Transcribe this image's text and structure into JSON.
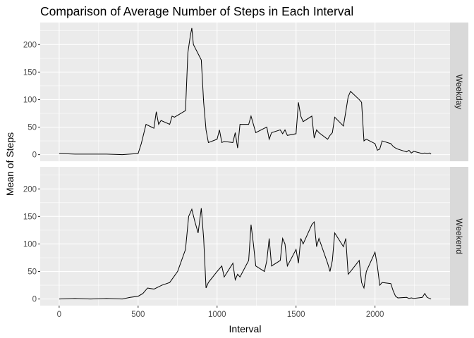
{
  "chart_data": {
    "type": "line",
    "title": "Comparison of Average Number of Steps in Each Interval",
    "xlabel": "Interval",
    "ylabel": "Mean of Steps",
    "xlim": [
      -120,
      2475
    ],
    "ylim": [
      -12,
      240
    ],
    "x_ticks": [
      0,
      500,
      1000,
      1500,
      2000
    ],
    "y_ticks": [
      0,
      50,
      100,
      150,
      200
    ],
    "grid": true,
    "line_color": "#000000",
    "panel_background": "#ebebeb",
    "strip_background": "#d9d9d9",
    "panels": [
      {
        "name": "Weekday",
        "x": [
          0,
          100,
          200,
          300,
          400,
          500,
          520,
          550,
          600,
          615,
          630,
          645,
          700,
          715,
          730,
          800,
          815,
          830,
          840,
          850,
          900,
          915,
          930,
          945,
          1000,
          1015,
          1030,
          1045,
          1100,
          1115,
          1130,
          1145,
          1200,
          1215,
          1230,
          1245,
          1300,
          1315,
          1330,
          1345,
          1400,
          1415,
          1430,
          1445,
          1500,
          1515,
          1530,
          1545,
          1600,
          1615,
          1630,
          1645,
          1700,
          1715,
          1730,
          1745,
          1800,
          1815,
          1830,
          1845,
          1900,
          1915,
          1930,
          1945,
          2000,
          2015,
          2030,
          2045,
          2100,
          2115,
          2130,
          2145,
          2200,
          2215,
          2230,
          2245,
          2300,
          2315,
          2330,
          2345,
          2355
        ],
        "y": [
          2,
          1,
          1,
          1,
          0,
          2,
          20,
          55,
          48,
          78,
          55,
          62,
          55,
          70,
          68,
          80,
          185,
          215,
          230,
          200,
          172,
          95,
          45,
          22,
          28,
          45,
          22,
          24,
          22,
          40,
          12,
          55,
          55,
          70,
          55,
          40,
          48,
          50,
          28,
          40,
          45,
          38,
          45,
          35,
          38,
          95,
          70,
          60,
          70,
          30,
          45,
          40,
          28,
          35,
          40,
          68,
          52,
          78,
          105,
          115,
          100,
          95,
          25,
          28,
          20,
          8,
          10,
          25,
          20,
          15,
          12,
          10,
          5,
          8,
          3,
          6,
          2,
          3,
          2,
          3,
          1
        ]
      },
      {
        "name": "Weekend",
        "x": [
          0,
          100,
          200,
          300,
          400,
          450,
          500,
          530,
          560,
          600,
          650,
          700,
          750,
          800,
          820,
          840,
          860,
          880,
          900,
          915,
          930,
          945,
          1000,
          1015,
          1030,
          1045,
          1100,
          1115,
          1130,
          1145,
          1200,
          1215,
          1230,
          1245,
          1300,
          1315,
          1330,
          1345,
          1400,
          1415,
          1430,
          1445,
          1500,
          1515,
          1530,
          1545,
          1600,
          1615,
          1630,
          1645,
          1700,
          1715,
          1730,
          1745,
          1800,
          1815,
          1830,
          1845,
          1900,
          1915,
          1930,
          1945,
          2000,
          2015,
          2030,
          2045,
          2100,
          2115,
          2130,
          2145,
          2200,
          2215,
          2230,
          2245,
          2300,
          2315,
          2330,
          2345,
          2355
        ],
        "y": [
          0,
          1,
          0,
          1,
          0,
          3,
          5,
          10,
          20,
          18,
          25,
          30,
          50,
          90,
          150,
          163,
          140,
          120,
          165,
          110,
          20,
          30,
          50,
          55,
          60,
          40,
          65,
          35,
          45,
          40,
          70,
          135,
          100,
          60,
          50,
          70,
          110,
          60,
          70,
          110,
          100,
          60,
          90,
          65,
          110,
          100,
          135,
          140,
          95,
          110,
          65,
          50,
          70,
          120,
          95,
          110,
          45,
          50,
          70,
          30,
          20,
          50,
          85,
          60,
          25,
          30,
          28,
          15,
          5,
          2,
          3,
          1,
          2,
          1,
          3,
          10,
          3,
          1,
          0
        ]
      }
    ]
  }
}
